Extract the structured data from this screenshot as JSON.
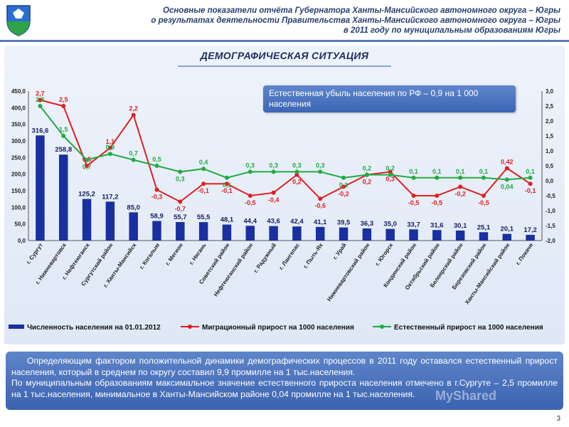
{
  "header": {
    "line1": "Основные показатели отчёта Губернатора  Ханты-Мансийского автономного округа – Югры",
    "line2": "о результатах  деятельности Правительства Ханты-Мансийского автономного округа – Югры",
    "line3": "в 2011 году по муниципальным образованиям Югры"
  },
  "section_title": "ДЕМОГРАФИЧЕСКАЯ СИТУАЦИЯ",
  "callout": "Естественная убыль населения по РФ – 0,9 на 1 000 населения",
  "bottom_text": {
    "p1": "Определяющим фактором положительной динамики демографических процессов в 2011 году оставался естественный прирост населения, который в среднем по округу составил 9,9 промилле на 1 тыс.населения.",
    "p2": "По муниципальным образованиям максимальное значение естественного прироста населения отмечено в г.Сургуте – 2,5 промилле на 1 тыс.населения, минимальное в Ханты-Мансийском районе 0,04 промилле на 1 тыс.населения."
  },
  "watermark": "MyShared",
  "page_number": "3",
  "colors": {
    "bars": "#1a2fa0",
    "migration": "#e02020",
    "natural": "#22aa44"
  },
  "chart_data": {
    "type": "bar",
    "categories": [
      "г. Сургут",
      "г. Нижневартовск",
      "г. Нефтеюганск",
      "Сургутский район",
      "г. Ханты-Мансийск",
      "г. Когалым",
      "г. Мегион",
      "г. Нягань",
      "Советский район",
      "Нефтеюганский район",
      "г. Радужный",
      "г. Лангепас",
      "г. Пыть-Ях",
      "г. Урай",
      "Нижневартовский район",
      "г. Югорск",
      "Кондинский район",
      "Октябрьский район",
      "Белоярский район",
      "Березовский район",
      "Ханты-Мансийский район",
      "г. Покачи"
    ],
    "series": [
      {
        "name": "Численность населения на 01.01.2012",
        "type": "bar",
        "axis": "left",
        "values": [
          316.6,
          258.8,
          125.2,
          117.2,
          85.0,
          58.9,
          55.7,
          55.5,
          48.1,
          44.4,
          43.6,
          42.4,
          41.1,
          39.5,
          36.3,
          35.0,
          33.7,
          31.6,
          30.1,
          25.1,
          20.1,
          17.2
        ],
        "labels": [
          "316,6",
          "258,8",
          "125,2",
          "117,2",
          "85,0",
          "58,9",
          "55,7",
          "55,5",
          "48,1",
          "44,4",
          "43,6",
          "42,4",
          "41,1",
          "39,5",
          "36,3",
          "35,0",
          "33,7",
          "31,6",
          "30,1",
          "25,1",
          "20,1",
          "17,2"
        ]
      },
      {
        "name": "Миграционный прирост на 1000 населения",
        "type": "line",
        "axis": "right",
        "values": [
          2.7,
          2.5,
          0.5,
          1.1,
          2.2,
          -0.3,
          -0.7,
          -0.1,
          -0.1,
          -0.5,
          -0.4,
          0.2,
          -0.6,
          -0.2,
          0.2,
          0.3,
          -0.5,
          -0.5,
          -0.2,
          -0.5,
          0.42,
          -0.1
        ],
        "labels": [
          "2,7",
          "2,5",
          "0,5",
          "1,1",
          "2,2",
          "-0,3",
          "-0,7",
          "-0,1",
          "-0,1",
          "-0,5",
          "-0,4",
          "0,2",
          "-0,6",
          "-0,2",
          "0,2",
          "0,3",
          "-0,5",
          "-0,5",
          "-0,2",
          "-0,5",
          "0,42",
          "-0,1"
        ]
      },
      {
        "name": "Естественный прирост на 1000 населения",
        "type": "line",
        "axis": "right",
        "values": [
          2.5,
          1.5,
          0.7,
          0.9,
          0.7,
          0.5,
          0.3,
          0.4,
          0.1,
          0.3,
          0.3,
          0.3,
          0.3,
          0.1,
          0.2,
          0.2,
          0.1,
          0.1,
          0.1,
          0.1,
          0.04,
          0.1
        ],
        "labels": [
          "2,5",
          "1,5",
          "0,7",
          "0,9",
          "0,7",
          "0,5",
          "0,3",
          "0,4",
          "0,1",
          "0,3",
          "0,3",
          "0,3",
          "0,3",
          "0,1",
          "0,2",
          "0,2",
          "0,1",
          "0,1",
          "0,1",
          "0,1",
          "0,04",
          "0,1"
        ]
      }
    ],
    "y_left": {
      "min": 0,
      "max": 450,
      "ticks": [
        "0,0",
        "50,0",
        "100,0",
        "150,0",
        "200,0",
        "250,0",
        "300,0",
        "350,0",
        "400,0",
        "450,0"
      ]
    },
    "y_right": {
      "min": -2.0,
      "max": 3.0,
      "ticks": [
        "-2,0",
        "-1,5",
        "-1,0",
        "-0,5",
        "0,0",
        "0,5",
        "1,0",
        "1,5",
        "2,0",
        "2,5",
        "3,0"
      ]
    },
    "legend": [
      "Численность населения на 01.01.2012",
      "Миграционный прирост на 1000 населения",
      "Естественный прирост на 1000 населения"
    ],
    "legend_position": "bottom",
    "grid": false
  }
}
